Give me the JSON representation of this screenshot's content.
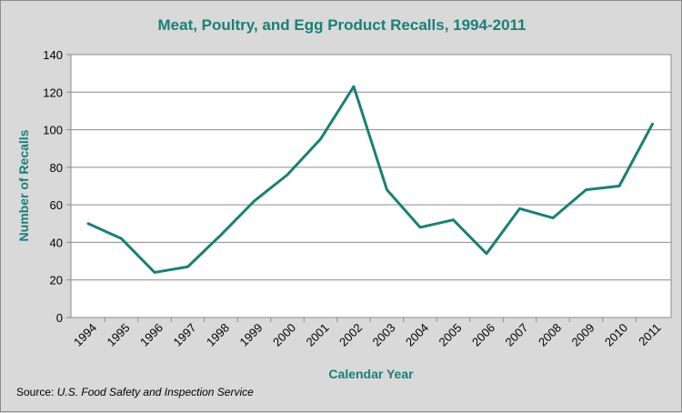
{
  "chart_data": {
    "type": "line",
    "title": "Meat, Poultry, and Egg Product Recalls, 1994-2011",
    "xlabel": "Calendar Year",
    "ylabel": "Number of Recalls",
    "categories": [
      "1994",
      "1995",
      "1996",
      "1997",
      "1998",
      "1999",
      "2000",
      "2001",
      "2002",
      "2003",
      "2004",
      "2005",
      "2006",
      "2007",
      "2008",
      "2009",
      "2010",
      "2011"
    ],
    "series": [
      {
        "values": [
          50,
          42,
          24,
          27,
          44,
          62,
          76,
          95,
          123,
          68,
          48,
          52,
          34,
          58,
          53,
          68,
          70,
          103
        ]
      }
    ],
    "ylim": [
      0,
      140
    ],
    "yticks": [
      0,
      20,
      40,
      60,
      80,
      100,
      120,
      140
    ],
    "grid": true,
    "line_color": "#1a8076"
  },
  "source": {
    "label": "Source:",
    "text": "U.S. Food Safety and Inspection Service"
  }
}
